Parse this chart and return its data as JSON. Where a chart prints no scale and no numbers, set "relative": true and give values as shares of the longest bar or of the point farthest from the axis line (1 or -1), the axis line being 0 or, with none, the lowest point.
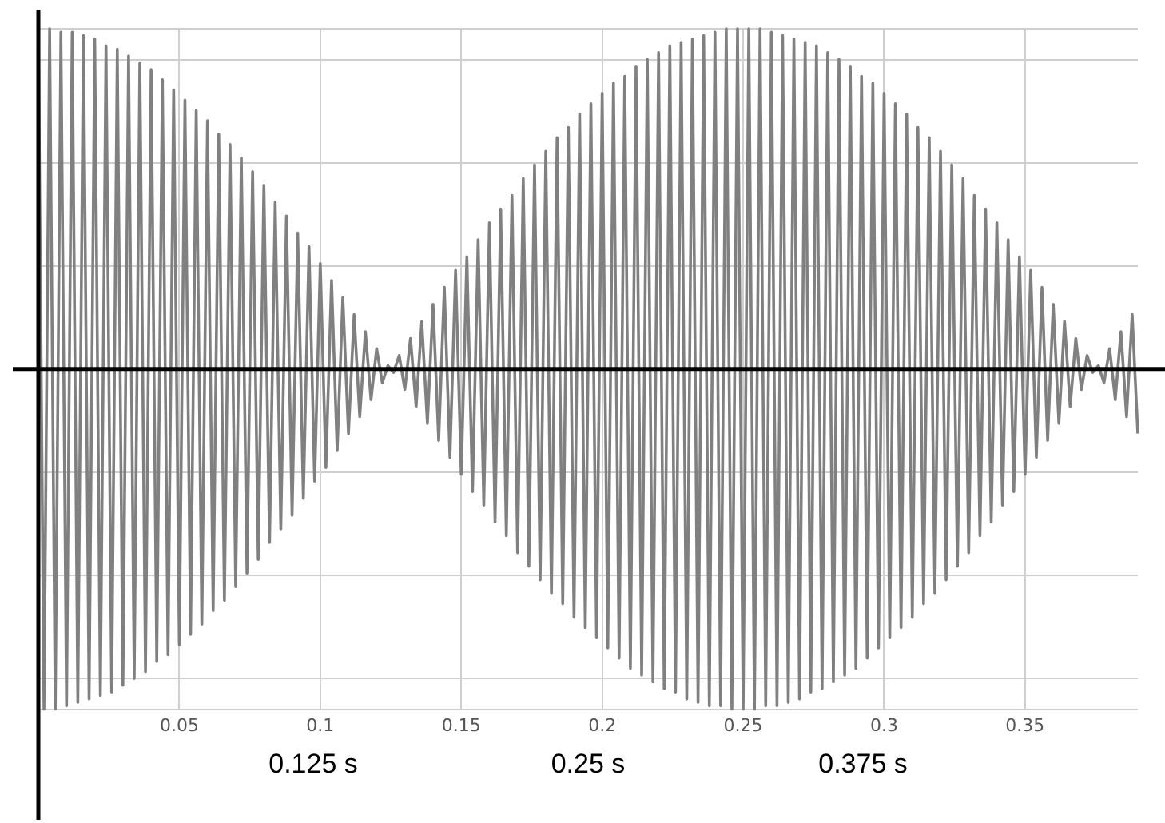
{
  "chart_data": {
    "type": "line",
    "relative": true,
    "grid": true,
    "marker": "none",
    "line_style": "solid",
    "xlim": [
      0,
      0.39
    ],
    "xticks": [
      0.05,
      0.1,
      0.15,
      0.2,
      0.25,
      0.3,
      0.35
    ],
    "annotations": [
      "0.125 s",
      "0.25 s",
      "0.375 s"
    ],
    "x": [
      0,
      0.002,
      0.004,
      0.006,
      0.008,
      0.01,
      0.012,
      0.014,
      0.016,
      0.018,
      0.02,
      0.022,
      0.024,
      0.026,
      0.028,
      0.03,
      0.032,
      0.034,
      0.036,
      0.038,
      0.04,
      0.042,
      0.044,
      0.046,
      0.048,
      0.05,
      0.052,
      0.054,
      0.056,
      0.058,
      0.06,
      0.062,
      0.064,
      0.066,
      0.068,
      0.07,
      0.072,
      0.074,
      0.076,
      0.078,
      0.08,
      0.082,
      0.084,
      0.086,
      0.088,
      0.09,
      0.092,
      0.094,
      0.096,
      0.098,
      0.1,
      0.102,
      0.104,
      0.106,
      0.108,
      0.11,
      0.112,
      0.114,
      0.116,
      0.118,
      0.12,
      0.122,
      0.124,
      0.126,
      0.128,
      0.13,
      0.132,
      0.134,
      0.136,
      0.138,
      0.14,
      0.142,
      0.144,
      0.146,
      0.148,
      0.15,
      0.152,
      0.154,
      0.156,
      0.158,
      0.16,
      0.162,
      0.164,
      0.166,
      0.168,
      0.17,
      0.172,
      0.174,
      0.176,
      0.178,
      0.18,
      0.182,
      0.184,
      0.186,
      0.188,
      0.19,
      0.192,
      0.194,
      0.196,
      0.198,
      0.2,
      0.202,
      0.204,
      0.206,
      0.208,
      0.21,
      0.212,
      0.214,
      0.216,
      0.218,
      0.22,
      0.222,
      0.224,
      0.226,
      0.228,
      0.23,
      0.232,
      0.234,
      0.236,
      0.238,
      0.24,
      0.242,
      0.244,
      0.246,
      0.248,
      0.25,
      0.252,
      0.254,
      0.256,
      0.258,
      0.26,
      0.262,
      0.264,
      0.266,
      0.268,
      0.27,
      0.272,
      0.274,
      0.276,
      0.278,
      0.28,
      0.282,
      0.284,
      0.286,
      0.288,
      0.29,
      0.292,
      0.294,
      0.296,
      0.298,
      0.3,
      0.302,
      0.304,
      0.306,
      0.308,
      0.31,
      0.312,
      0.314,
      0.316,
      0.318,
      0.32,
      0.322,
      0.324,
      0.326,
      0.328,
      0.33,
      0.332,
      0.334,
      0.336,
      0.338,
      0.34,
      0.342,
      0.344,
      0.346,
      0.348,
      0.35,
      0.352,
      0.354,
      0.356,
      0.358,
      0.36,
      0.362,
      0.364,
      0.366,
      0.368,
      0.37,
      0.372,
      0.374,
      0.376,
      0.378,
      0.38,
      0.382,
      0.384,
      0.386,
      0.388,
      0.39
    ],
    "series": [
      {
        "color": "#808080",
        "values": [
          1.0,
          -1.0,
          1.0,
          -1.0,
          0.99,
          -0.99,
          0.99,
          -0.98,
          0.98,
          -0.97,
          0.97,
          -0.96,
          0.95,
          -0.95,
          0.94,
          -0.93,
          0.92,
          -0.91,
          0.9,
          -0.89,
          0.88,
          -0.86,
          0.85,
          -0.84,
          0.82,
          -0.81,
          0.79,
          -0.78,
          0.76,
          -0.75,
          0.73,
          -0.71,
          0.69,
          -0.68,
          0.66,
          -0.64,
          0.62,
          -0.6,
          0.58,
          -0.56,
          0.54,
          -0.51,
          0.49,
          -0.47,
          0.45,
          -0.43,
          0.4,
          -0.38,
          0.36,
          -0.33,
          0.31,
          -0.29,
          0.26,
          -0.24,
          0.21,
          -0.19,
          0.16,
          -0.14,
          0.11,
          -0.09,
          0.06,
          -0.04,
          0.01,
          -0.01,
          0.04,
          -0.06,
          0.09,
          -0.11,
          0.14,
          -0.16,
          0.19,
          -0.21,
          0.24,
          -0.26,
          0.29,
          -0.31,
          0.33,
          -0.36,
          0.38,
          -0.4,
          0.43,
          -0.45,
          0.47,
          -0.49,
          0.51,
          -0.54,
          0.56,
          -0.58,
          0.6,
          -0.62,
          0.64,
          -0.66,
          0.68,
          -0.69,
          0.71,
          -0.73,
          0.75,
          -0.76,
          0.78,
          -0.79,
          0.81,
          -0.82,
          0.84,
          -0.85,
          0.86,
          -0.88,
          0.89,
          -0.9,
          0.91,
          -0.92,
          0.93,
          -0.94,
          0.95,
          -0.95,
          0.96,
          -0.97,
          0.97,
          -0.98,
          0.98,
          -0.99,
          0.99,
          -0.99,
          1.0,
          -1.0,
          1.0,
          -1.0,
          1.0,
          -1.0,
          1.0,
          -0.99,
          0.99,
          -0.99,
          0.98,
          -0.98,
          0.97,
          -0.97,
          0.96,
          -0.95,
          0.95,
          -0.94,
          0.93,
          -0.92,
          0.91,
          -0.9,
          0.89,
          -0.88,
          0.86,
          -0.85,
          0.84,
          -0.82,
          0.81,
          -0.79,
          0.78,
          -0.76,
          0.75,
          -0.73,
          0.71,
          -0.69,
          0.68,
          -0.66,
          0.64,
          -0.62,
          0.6,
          -0.58,
          0.56,
          -0.54,
          0.51,
          -0.49,
          0.47,
          -0.45,
          0.43,
          -0.4,
          0.38,
          -0.36,
          0.33,
          -0.31,
          0.29,
          -0.26,
          0.24,
          -0.21,
          0.19,
          -0.16,
          0.14,
          -0.11,
          0.09,
          -0.06,
          0.04,
          -0.01,
          0.01,
          -0.04,
          0.06,
          -0.09,
          0.11,
          -0.14,
          0.16,
          -0.19
        ]
      }
    ]
  }
}
